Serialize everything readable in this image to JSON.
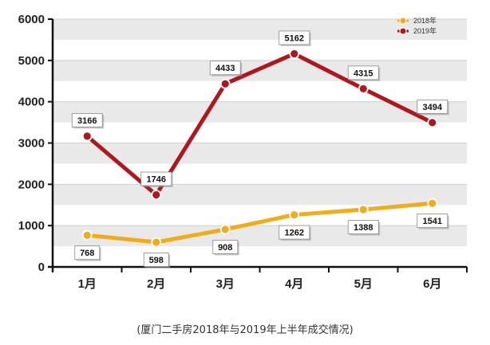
{
  "caption": "(厦门二手房2018年与2019年上半年成交情况)",
  "chart_data": {
    "type": "line",
    "categories": [
      "1月",
      "2月",
      "3月",
      "4月",
      "5月",
      "6月"
    ],
    "series": [
      {
        "name": "2018年",
        "values": [
          768,
          598,
          908,
          1262,
          1388,
          1541
        ],
        "color": "#f0ad19"
      },
      {
        "name": "2019年",
        "values": [
          3166,
          1746,
          4433,
          5162,
          4315,
          3494
        ],
        "color": "#b0171c"
      }
    ],
    "ylim": [
      0,
      6000
    ],
    "yticks": [
      0,
      1000,
      2000,
      3000,
      4000,
      5000,
      6000
    ],
    "title": "",
    "xlabel": "",
    "ylabel": "",
    "grid": "horizontal bands",
    "legend": "top-right"
  }
}
